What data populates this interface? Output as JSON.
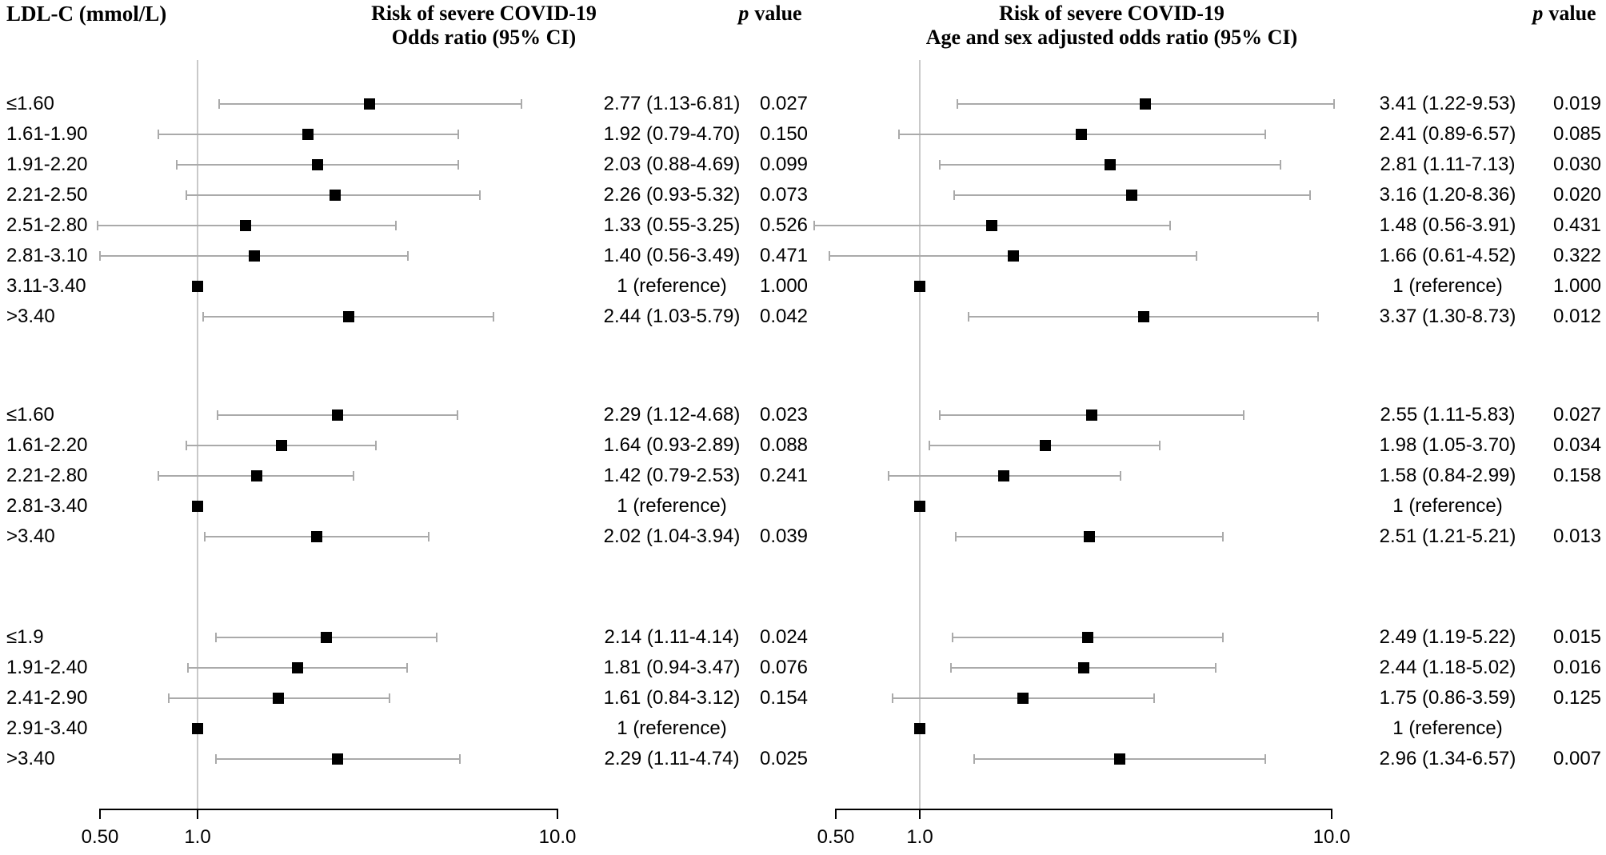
{
  "chart_data": {
    "type": "forest",
    "scale": "log",
    "row_group_label": "LDL-C (mmol/L)",
    "x_ticks": {
      "labels": [
        "0.50",
        "1.0",
        "10.0"
      ],
      "values": [
        0.5,
        1.0,
        10.0
      ]
    },
    "reference_value": 1.0,
    "panels": [
      {
        "id": "unadjusted",
        "title_line1": "Risk of severe COVID-19",
        "title_line2": "Odds ratio (95% CI)",
        "p_header_italic": "p",
        "p_header_rest": "value"
      },
      {
        "id": "adjusted",
        "title_line1": "Risk of severe COVID-19",
        "title_line2": "Age and sex adjusted odds ratio (95% CI)",
        "p_header_italic": "p",
        "p_header_rest": "value"
      }
    ],
    "groups": [
      {
        "rows": [
          {
            "label": "≤1.60",
            "unadjusted": {
              "or": 2.77,
              "lo": 1.13,
              "hi": 6.81,
              "text": "2.77 (1.13-6.81)",
              "p": "0.027"
            },
            "adjusted": {
              "or": 3.41,
              "lo": 1.22,
              "hi": 9.53,
              "text": "3.41 (1.22-9.53)",
              "p": "0.019"
            }
          },
          {
            "label": "1.61-1.90",
            "unadjusted": {
              "or": 1.92,
              "lo": 0.79,
              "hi": 4.7,
              "text": "1.92 (0.79-4.70)",
              "p": "0.150"
            },
            "adjusted": {
              "or": 2.41,
              "lo": 0.89,
              "hi": 6.57,
              "text": "2.41 (0.89-6.57)",
              "p": "0.085"
            }
          },
          {
            "label": "1.91-2.20",
            "unadjusted": {
              "or": 2.03,
              "lo": 0.88,
              "hi": 4.69,
              "text": "2.03 (0.88-4.69)",
              "p": "0.099"
            },
            "adjusted": {
              "or": 2.81,
              "lo": 1.11,
              "hi": 7.13,
              "text": "2.81 (1.11-7.13)",
              "p": "0.030"
            }
          },
          {
            "label": "2.21-2.50",
            "unadjusted": {
              "or": 2.26,
              "lo": 0.93,
              "hi": 5.32,
              "text": "2.26 (0.93-5.32)",
              "p": "0.073"
            },
            "adjusted": {
              "or": 3.16,
              "lo": 1.2,
              "hi": 8.36,
              "text": "3.16 (1.20-8.36)",
              "p": "0.020"
            }
          },
          {
            "label": "2.51-2.80",
            "unadjusted": {
              "or": 1.33,
              "lo": 0.55,
              "hi": 3.25,
              "text": "1.33 (0.55-3.25)",
              "p": "0.526"
            },
            "adjusted": {
              "or": 1.48,
              "lo": 0.56,
              "hi": 3.91,
              "text": "1.48 (0.56-3.91)",
              "p": "0.431"
            }
          },
          {
            "label": "2.81-3.10",
            "unadjusted": {
              "or": 1.4,
              "lo": 0.56,
              "hi": 3.49,
              "text": "1.40 (0.56-3.49)",
              "p": "0.471"
            },
            "adjusted": {
              "or": 1.66,
              "lo": 0.61,
              "hi": 4.52,
              "text": "1.66 (0.61-4.52)",
              "p": "0.322"
            }
          },
          {
            "label": "3.11-3.40",
            "unadjusted": {
              "or": 1,
              "lo": null,
              "hi": null,
              "text": "1 (reference)",
              "p": "1.000"
            },
            "adjusted": {
              "or": 1,
              "lo": null,
              "hi": null,
              "text": "1 (reference)",
              "p": "1.000"
            }
          },
          {
            "label": ">3.40",
            "unadjusted": {
              "or": 2.44,
              "lo": 1.03,
              "hi": 5.79,
              "text": "2.44 (1.03-5.79)",
              "p": "0.042"
            },
            "adjusted": {
              "or": 3.37,
              "lo": 1.3,
              "hi": 8.73,
              "text": "3.37 (1.30-8.73)",
              "p": "0.012"
            }
          }
        ]
      },
      {
        "rows": [
          {
            "label": "≤1.60",
            "unadjusted": {
              "or": 2.29,
              "lo": 1.12,
              "hi": 4.68,
              "text": "2.29 (1.12-4.68)",
              "p": "0.023"
            },
            "adjusted": {
              "or": 2.55,
              "lo": 1.11,
              "hi": 5.83,
              "text": "2.55 (1.11-5.83)",
              "p": "0.027"
            }
          },
          {
            "label": "1.61-2.20",
            "unadjusted": {
              "or": 1.64,
              "lo": 0.93,
              "hi": 2.89,
              "text": "1.64 (0.93-2.89)",
              "p": "0.088"
            },
            "adjusted": {
              "or": 1.98,
              "lo": 1.05,
              "hi": 3.7,
              "text": "1.98 (1.05-3.70)",
              "p": "0.034"
            }
          },
          {
            "label": "2.21-2.80",
            "unadjusted": {
              "or": 1.42,
              "lo": 0.79,
              "hi": 2.53,
              "text": "1.42 (0.79-2.53)",
              "p": "0.241"
            },
            "adjusted": {
              "or": 1.58,
              "lo": 0.84,
              "hi": 2.99,
              "text": "1.58 (0.84-2.99)",
              "p": "0.158"
            }
          },
          {
            "label": "2.81-3.40",
            "unadjusted": {
              "or": 1,
              "lo": null,
              "hi": null,
              "text": "1 (reference)",
              "p": ""
            },
            "adjusted": {
              "or": 1,
              "lo": null,
              "hi": null,
              "text": "1 (reference)",
              "p": ""
            }
          },
          {
            "label": ">3.40",
            "unadjusted": {
              "or": 2.02,
              "lo": 1.04,
              "hi": 3.94,
              "text": "2.02 (1.04-3.94)",
              "p": "0.039"
            },
            "adjusted": {
              "or": 2.51,
              "lo": 1.21,
              "hi": 5.21,
              "text": "2.51 (1.21-5.21)",
              "p": "0.013"
            }
          }
        ]
      },
      {
        "rows": [
          {
            "label": "≤1.9",
            "unadjusted": {
              "or": 2.14,
              "lo": 1.11,
              "hi": 4.14,
              "text": "2.14 (1.11-4.14)",
              "p": "0.024"
            },
            "adjusted": {
              "or": 2.49,
              "lo": 1.19,
              "hi": 5.22,
              "text": "2.49 (1.19-5.22)",
              "p": "0.015"
            }
          },
          {
            "label": "1.91-2.40",
            "unadjusted": {
              "or": 1.81,
              "lo": 0.94,
              "hi": 3.47,
              "text": "1.81 (0.94-3.47)",
              "p": "0.076"
            },
            "adjusted": {
              "or": 2.44,
              "lo": 1.18,
              "hi": 5.02,
              "text": "2.44 (1.18-5.02)",
              "p": "0.016"
            }
          },
          {
            "label": "2.41-2.90",
            "unadjusted": {
              "or": 1.61,
              "lo": 0.84,
              "hi": 3.12,
              "text": "1.61 (0.84-3.12)",
              "p": "0.154"
            },
            "adjusted": {
              "or": 1.75,
              "lo": 0.86,
              "hi": 3.59,
              "text": "1.75 (0.86-3.59)",
              "p": "0.125"
            }
          },
          {
            "label": "2.91-3.40",
            "unadjusted": {
              "or": 1,
              "lo": null,
              "hi": null,
              "text": "1 (reference)",
              "p": ""
            },
            "adjusted": {
              "or": 1,
              "lo": null,
              "hi": null,
              "text": "1 (reference)",
              "p": ""
            }
          },
          {
            "label": ">3.40",
            "unadjusted": {
              "or": 2.29,
              "lo": 1.11,
              "hi": 4.74,
              "text": "2.29 (1.11-4.74)",
              "p": "0.025"
            },
            "adjusted": {
              "or": 2.96,
              "lo": 1.34,
              "hi": 6.57,
              "text": "2.96 (1.34-6.57)",
              "p": "0.007"
            }
          }
        ]
      }
    ]
  }
}
